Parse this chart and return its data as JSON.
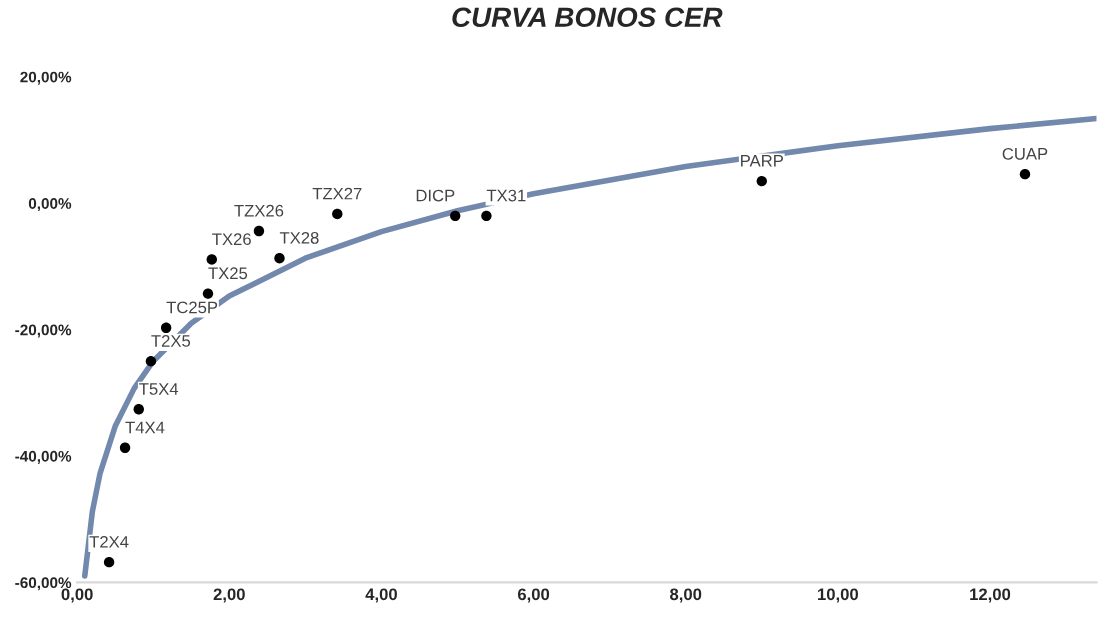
{
  "chart_data": {
    "type": "scatter",
    "title": "CURVA BONOS CER",
    "series": [
      {
        "color": "#000000",
        "marker": "circle",
        "x": [
          0.42,
          0.63,
          0.81,
          0.97,
          1.17,
          1.72,
          1.77,
          2.39,
          2.66,
          3.42,
          4.97,
          5.38,
          9.0,
          12.46
        ],
        "values": [
          -56.8,
          -38.7,
          -32.6,
          -25.0,
          -19.7,
          -14.3,
          -8.9,
          -4.4,
          -8.7,
          -1.7,
          -2.0,
          -2.0,
          3.5,
          4.6
        ]
      },
      {
        "type": "line",
        "color": "#7288ad",
        "marker": "none",
        "x": [
          0.1,
          0.2,
          0.3,
          0.5,
          0.75,
          1,
          1.5,
          2,
          3,
          4,
          5,
          6,
          8,
          10,
          12,
          13.4
        ],
        "values": [
          -59,
          -48.8,
          -42.8,
          -35.3,
          -29.3,
          -25,
          -19,
          -14.7,
          -8.7,
          -4.5,
          -1.2,
          1.5,
          5.8,
          9.1,
          11.8,
          13.4
        ]
      }
    ],
    "annotations": [
      {
        "text": "T2X4",
        "x": 0.42,
        "y": -56.8
      },
      {
        "text": "T4X4",
        "x": 0.63,
        "y": -38.7
      },
      {
        "text": "T5X4",
        "x": 0.81,
        "y": -32.6
      },
      {
        "text": "T2X5",
        "x": 0.97,
        "y": -25.0
      },
      {
        "text": "TC25P",
        "x": 1.17,
        "y": -19.7
      },
      {
        "text": "TX25",
        "x": 1.72,
        "y": -14.3
      },
      {
        "text": "TX26",
        "x": 1.77,
        "y": -8.9
      },
      {
        "text": "TZX26",
        "x": 2.39,
        "y": -4.4
      },
      {
        "text": "TX28",
        "x": 2.66,
        "y": -8.7
      },
      {
        "text": "TZX27",
        "x": 3.42,
        "y": -1.7
      },
      {
        "text": "DICP",
        "x": 4.97,
        "y": -2.0
      },
      {
        "text": "TX31",
        "x": 5.38,
        "y": -2.0
      },
      {
        "text": "PARP",
        "x": 9.0,
        "y": 3.5
      },
      {
        "text": "CUAP",
        "x": 12.46,
        "y": 4.6
      }
    ],
    "xlim": [
      0,
      13.4
    ],
    "ylim": [
      -60,
      20
    ],
    "xticks": [
      {
        "value": 0,
        "label": "0,00"
      },
      {
        "value": 2,
        "label": "2,00"
      },
      {
        "value": 4,
        "label": "4,00"
      },
      {
        "value": 6,
        "label": "6,00"
      },
      {
        "value": 8,
        "label": "8,00"
      },
      {
        "value": 10,
        "label": "10,00"
      },
      {
        "value": 12,
        "label": "12,00"
      }
    ],
    "yticks": [
      {
        "value": -60,
        "label": "-60,00%"
      },
      {
        "value": -40,
        "label": "-40,00%"
      },
      {
        "value": -20,
        "label": "-20,00%"
      },
      {
        "value": 0,
        "label": "0,00%"
      },
      {
        "value": 20,
        "label": "20,00%"
      }
    ],
    "grid": false,
    "legend": false
  }
}
